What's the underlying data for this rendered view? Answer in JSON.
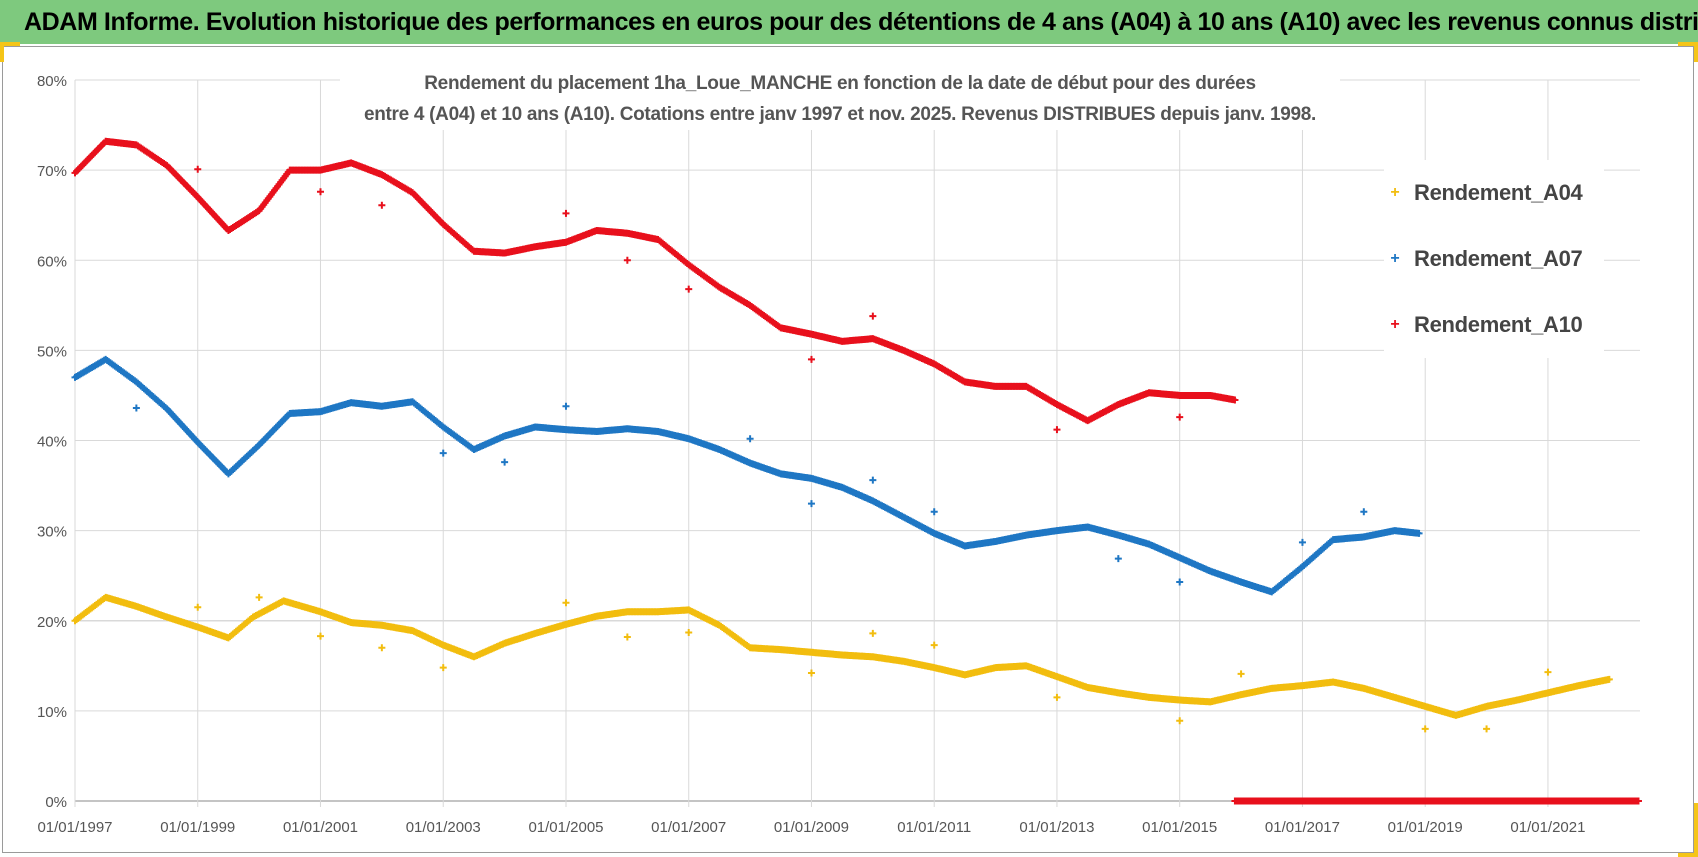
{
  "banner": {
    "title": "ADAM Informe. Evolution historique des performances en euros pour des détentions de 4 ans (A04) à 10 ans (A10) avec les revenus connus distribués"
  },
  "chart_data": {
    "type": "scatter",
    "title_line1": "Rendement du placement 1ha_Loue_MANCHE en fonction de la date de début pour des durées",
    "title_line2": "entre 4 (A04) et 10 ans (A10).  Cotations entre janv 1997 et nov. 2025. Revenus DISTRIBUES depuis janv. 1998.",
    "xlabel": "",
    "ylabel": "",
    "xlim": [
      1997.0,
      2022.5
    ],
    "ylim": [
      0,
      80
    ],
    "y_ticks": [
      "0%",
      "10%",
      "20%",
      "30%",
      "40%",
      "50%",
      "60%",
      "70%",
      "80%"
    ],
    "y_tick_values": [
      0,
      10,
      20,
      30,
      40,
      50,
      60,
      70,
      80
    ],
    "x_ticks": [
      "01/01/1997",
      "01/01/1999",
      "01/01/2001",
      "01/01/2003",
      "01/01/2005",
      "01/01/2007",
      "01/01/2009",
      "01/01/2011",
      "01/01/2013",
      "01/01/2015",
      "01/01/2017",
      "01/01/2019",
      "01/01/2021"
    ],
    "x_tick_values": [
      1997,
      1999,
      2001,
      2003,
      2005,
      2007,
      2009,
      2011,
      2013,
      2015,
      2017,
      2019,
      2021
    ],
    "grid": true,
    "legend_position": "right",
    "marker": "+",
    "series": [
      {
        "name": "Rendement_A04",
        "color": "#f2bd0f",
        "x": [
          1997.0,
          1997.5,
          1998.0,
          1998.5,
          1999.0,
          1999.5,
          1999.9,
          2000.4,
          2001.0,
          2001.5,
          2002.0,
          2002.5,
          2003.0,
          2003.5,
          2004.0,
          2004.5,
          2005.0,
          2005.5,
          2006.0,
          2006.5,
          2007.0,
          2007.5,
          2008.0,
          2008.5,
          2009.0,
          2009.5,
          2010.0,
          2010.5,
          2011.0,
          2011.5,
          2012.0,
          2012.5,
          2013.0,
          2013.5,
          2014.0,
          2014.5,
          2015.0,
          2015.5,
          2016.0,
          2016.5,
          2017.0,
          2017.5,
          2018.0,
          2018.5,
          2019.0,
          2019.5,
          2020.0,
          2020.5,
          2021.0,
          2021.5,
          2022.0
        ],
        "y": [
          20,
          22.6,
          21.6,
          20.4,
          19.3,
          18.1,
          20.4,
          22.2,
          21.0,
          19.8,
          19.5,
          18.9,
          17.3,
          16.0,
          17.5,
          18.6,
          19.6,
          20.5,
          21.0,
          21.0,
          21.2,
          19.5,
          17.0,
          16.8,
          16.5,
          16.2,
          16.0,
          15.5,
          14.8,
          14.0,
          14.8,
          15.0,
          13.8,
          12.6,
          12.0,
          11.5,
          11.2,
          11.0,
          11.8,
          12.5,
          12.8,
          13.2,
          12.5,
          11.5,
          10.5,
          9.5,
          10.5,
          11.2,
          12.0,
          12.8,
          13.5
        ],
        "outliers_x": [
          1999.0,
          2000.0,
          2001.0,
          2002.0,
          2003.0,
          2005.0,
          2006.0,
          2007.0,
          2009.0,
          2010.0,
          2011.0,
          2013.0,
          2015.0,
          2016.0,
          2019.0,
          2020.0,
          2021.0
        ],
        "outliers_y": [
          21.5,
          22.6,
          18.3,
          17.0,
          14.8,
          22.0,
          18.2,
          18.7,
          14.2,
          18.6,
          17.3,
          11.5,
          8.9,
          14.1,
          8.0,
          8.0,
          14.3
        ]
      },
      {
        "name": "Rendement_A07",
        "color": "#1f77c4",
        "x": [
          1997.0,
          1997.5,
          1998.0,
          1998.5,
          1999.0,
          1999.5,
          2000.0,
          2000.5,
          2001.0,
          2001.5,
          2002.0,
          2002.5,
          2003.0,
          2003.5,
          2004.0,
          2004.5,
          2005.0,
          2005.5,
          2006.0,
          2006.5,
          2007.0,
          2007.5,
          2008.0,
          2008.5,
          2009.0,
          2009.5,
          2010.0,
          2010.5,
          2011.0,
          2011.5,
          2012.0,
          2012.5,
          2013.0,
          2013.5,
          2014.0,
          2014.5,
          2015.0,
          2015.5,
          2016.0,
          2016.5,
          2017.0,
          2017.5,
          2018.0,
          2018.5,
          2018.9
        ],
        "y": [
          47,
          49.0,
          46.5,
          43.5,
          39.8,
          36.3,
          39.5,
          43.0,
          43.2,
          44.2,
          43.8,
          44.3,
          41.5,
          39.0,
          40.5,
          41.5,
          41.2,
          41.0,
          41.3,
          41.0,
          40.2,
          39.0,
          37.5,
          36.3,
          35.8,
          34.8,
          33.3,
          31.5,
          29.7,
          28.3,
          28.8,
          29.5,
          30.0,
          30.4,
          29.5,
          28.5,
          27.0,
          25.5,
          24.3,
          23.2,
          26.0,
          29.0,
          29.3,
          30.0,
          29.7
        ],
        "outliers_x": [
          1998.0,
          2003.0,
          2004.0,
          2005.0,
          2008.0,
          2009.0,
          2010.0,
          2011.0,
          2014.0,
          2015.0,
          2017.0,
          2018.0
        ],
        "outliers_y": [
          43.6,
          38.6,
          37.6,
          43.8,
          40.2,
          33.0,
          35.6,
          32.1,
          26.9,
          24.3,
          28.7,
          32.1
        ]
      },
      {
        "name": "Rendement_A10",
        "color": "#e8101c",
        "x": [
          1997.0,
          1997.5,
          1998.0,
          1998.5,
          1999.0,
          1999.5,
          2000.0,
          2000.5,
          2001.0,
          2001.5,
          2002.0,
          2002.5,
          2003.0,
          2003.5,
          2004.0,
          2004.5,
          2005.0,
          2005.5,
          2006.0,
          2006.5,
          2007.0,
          2007.5,
          2008.0,
          2008.5,
          2009.0,
          2009.5,
          2010.0,
          2010.5,
          2011.0,
          2011.5,
          2012.0,
          2012.5,
          2013.0,
          2013.5,
          2014.0,
          2014.5,
          2015.0,
          2015.5,
          2015.9
        ],
        "y": [
          69.7,
          73.2,
          72.8,
          70.5,
          67.0,
          63.3,
          65.5,
          70.0,
          70.0,
          70.8,
          69.5,
          67.5,
          64.0,
          61.0,
          60.8,
          61.5,
          62.0,
          63.3,
          63.0,
          62.3,
          59.5,
          57.0,
          55.0,
          52.5,
          51.8,
          51.0,
          51.3,
          50.0,
          48.5,
          46.5,
          46.0,
          46.0,
          44.0,
          42.2,
          44.0,
          45.3,
          45.0,
          45.0,
          44.5
        ],
        "outliers_x": [
          1999.0,
          2001.0,
          2002.0,
          2005.0,
          2006.0,
          2007.0,
          2009.0,
          2010.0,
          2013.0,
          2015.0
        ],
        "outliers_y": [
          70.1,
          67.6,
          66.1,
          65.2,
          60.0,
          56.8,
          49.0,
          53.8,
          41.2,
          42.6
        ],
        "zero_from": 2015.9,
        "zero_to": 2022.5
      }
    ]
  }
}
